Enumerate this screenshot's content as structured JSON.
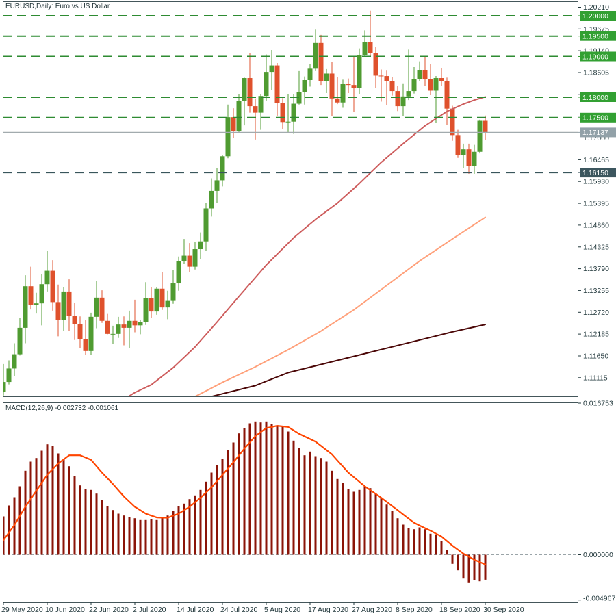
{
  "title": "EURUSD,Daily: Euro vs US Dollar",
  "window": {
    "symbol": "EURUSD",
    "period": "Daily",
    "description": "Euro vs US Dollar"
  },
  "indicator": {
    "label": "MACD(12,26,9) -0.002732 -0.001061",
    "name": "MACD(12,26,9)",
    "macd_value": "-0.002732",
    "signal_value": "-0.001061"
  },
  "colors": {
    "background": "#ffffff",
    "frame": "#44565a",
    "axis_text": "#22383c",
    "bull_candle": "#4f9b31",
    "bear_candle": "#df512c",
    "level_green": "#2e8b32",
    "level_dark": "#39565c",
    "badge_green": "#32a032",
    "badge_dark": "#3c565e",
    "bid_line": "#a2abae",
    "bid_badge": "#92a1a8",
    "ma_fast": "#cd5c5c",
    "ma_mid": "#ffa07a",
    "ma_slow": "#4b0707",
    "macd_histogram": "#8b1408",
    "macd_signal": "#ff4500",
    "zero_line": "#9aa4a8"
  },
  "chart_data": {
    "type": "candlestick+macd",
    "title": "EURUSD,Daily: Euro vs US Dollar",
    "bars": 89,
    "first_bar_date": "29 May 2020",
    "last_bar_date": "30 Sep 2020",
    "x_ticks": [
      {
        "bar": 0,
        "label": "29 May 2020"
      },
      {
        "bar": 8,
        "label": "10 Jun 2020"
      },
      {
        "bar": 16,
        "label": "22 Jun 2020"
      },
      {
        "bar": 24,
        "label": "2 Jul 2020"
      },
      {
        "bar": 32,
        "label": "14 Jul 2020"
      },
      {
        "bar": 40,
        "label": "24 Jul 2020"
      },
      {
        "bar": 48,
        "label": "5 Aug 2020"
      },
      {
        "bar": 56,
        "label": "17 Aug 2020"
      },
      {
        "bar": 64,
        "label": "27 Aug 2020"
      },
      {
        "bar": 72,
        "label": "8 Sep 2020"
      },
      {
        "bar": 80,
        "label": "18 Sep 2020"
      },
      {
        "bar": 88,
        "label": "30 Sep 2020"
      }
    ],
    "price_axis": {
      "ticks": [
        "1.20210",
        "1.19675",
        "1.19140",
        "1.18605",
        "1.18070",
        "1.17535",
        "1.17000",
        "1.16465",
        "1.15930",
        "1.15395",
        "1.14860",
        "1.14325",
        "1.13790",
        "1.13255",
        "1.12720",
        "1.12185",
        "1.11650",
        "1.11115"
      ],
      "tick_step": 0.00535,
      "visible_range": [
        1.1064,
        1.2035
      ]
    },
    "levels": [
      {
        "label": "1.20000",
        "value": 1.2,
        "style": "green-dashed"
      },
      {
        "label": "1.19500",
        "value": 1.195,
        "style": "green-dashed"
      },
      {
        "label": "1.19000",
        "value": 1.19,
        "style": "green-dashed"
      },
      {
        "label": "1.18000",
        "value": 1.18,
        "style": "green-dashed"
      },
      {
        "label": "1.17500",
        "value": 1.175,
        "style": "green-dashed"
      },
      {
        "label": "1.16150",
        "value": 1.1615,
        "style": "dark-dashed"
      }
    ],
    "bid": {
      "label": "1.17137",
      "value": 1.17137
    },
    "ohlc": [
      [
        1.1076,
        1.1145,
        1.1068,
        1.1101
      ],
      [
        1.1101,
        1.1154,
        1.1095,
        1.1134
      ],
      [
        1.1134,
        1.1196,
        1.1116,
        1.1169
      ],
      [
        1.1169,
        1.1258,
        1.1166,
        1.1234
      ],
      [
        1.1234,
        1.1363,
        1.1196,
        1.1336
      ],
      [
        1.1336,
        1.1384,
        1.1279,
        1.1291
      ],
      [
        1.1291,
        1.132,
        1.1269,
        1.1294
      ],
      [
        1.1294,
        1.1366,
        1.124,
        1.1341
      ],
      [
        1.1341,
        1.1422,
        1.1323,
        1.1374
      ],
      [
        1.1374,
        1.14,
        1.1276,
        1.1297
      ],
      [
        1.1297,
        1.134,
        1.1213,
        1.1254
      ],
      [
        1.1254,
        1.1333,
        1.1227,
        1.1323
      ],
      [
        1.1323,
        1.1353,
        1.1226,
        1.1263
      ],
      [
        1.1263,
        1.1296,
        1.1204,
        1.1243
      ],
      [
        1.1243,
        1.1262,
        1.1185,
        1.1206
      ],
      [
        1.1206,
        1.1253,
        1.1168,
        1.1177
      ],
      [
        1.1177,
        1.1271,
        1.1168,
        1.1261
      ],
      [
        1.1261,
        1.1349,
        1.1233,
        1.1308
      ],
      [
        1.1308,
        1.1326,
        1.1246,
        1.1251
      ],
      [
        1.1251,
        1.1268,
        1.1218,
        1.1219
      ],
      [
        1.1219,
        1.1239,
        1.1194,
        1.1219
      ],
      [
        1.1219,
        1.1261,
        1.1209,
        1.1242
      ],
      [
        1.1242,
        1.1262,
        1.1191,
        1.1234
      ],
      [
        1.1234,
        1.1276,
        1.1185,
        1.1251
      ],
      [
        1.1251,
        1.1303,
        1.1223,
        1.124
      ],
      [
        1.124,
        1.1254,
        1.1218,
        1.1248
      ],
      [
        1.1248,
        1.1346,
        1.1241,
        1.1307
      ],
      [
        1.1307,
        1.1333,
        1.1259,
        1.1274
      ],
      [
        1.1274,
        1.1333,
        1.1266,
        1.133
      ],
      [
        1.133,
        1.1371,
        1.1278,
        1.1284
      ],
      [
        1.1284,
        1.1325,
        1.1255,
        1.13
      ],
      [
        1.13,
        1.1375,
        1.1293,
        1.1343
      ],
      [
        1.1343,
        1.1409,
        1.1325,
        1.1397
      ],
      [
        1.1397,
        1.1452,
        1.139,
        1.1411
      ],
      [
        1.1411,
        1.1442,
        1.137,
        1.1384
      ],
      [
        1.1384,
        1.1444,
        1.1377,
        1.1427
      ],
      [
        1.1427,
        1.1468,
        1.1402,
        1.1446
      ],
      [
        1.1446,
        1.154,
        1.1422,
        1.1527
      ],
      [
        1.1527,
        1.1601,
        1.1507,
        1.157
      ],
      [
        1.157,
        1.1627,
        1.154,
        1.1596
      ],
      [
        1.1596,
        1.1658,
        1.1581,
        1.1655
      ],
      [
        1.1655,
        1.1782,
        1.165,
        1.1751
      ],
      [
        1.1751,
        1.1773,
        1.17,
        1.1716
      ],
      [
        1.1716,
        1.1807,
        1.1712,
        1.179
      ],
      [
        1.179,
        1.1848,
        1.1731,
        1.1847
      ],
      [
        1.1847,
        1.1909,
        1.1762,
        1.1778
      ],
      [
        1.1778,
        1.1797,
        1.1696,
        1.1762
      ],
      [
        1.1762,
        1.1807,
        1.172,
        1.1803
      ],
      [
        1.1803,
        1.1905,
        1.179,
        1.1862
      ],
      [
        1.1862,
        1.1916,
        1.1817,
        1.1878
      ],
      [
        1.1878,
        1.1884,
        1.1754,
        1.1786
      ],
      [
        1.1786,
        1.1798,
        1.1722,
        1.1739
      ],
      [
        1.1739,
        1.1808,
        1.1711,
        1.174
      ],
      [
        1.174,
        1.1808,
        1.171,
        1.1784
      ],
      [
        1.1784,
        1.1864,
        1.1782,
        1.1813
      ],
      [
        1.1813,
        1.1851,
        1.1782,
        1.1842
      ],
      [
        1.1842,
        1.1882,
        1.1826,
        1.187
      ],
      [
        1.187,
        1.1966,
        1.1864,
        1.1933
      ],
      [
        1.1933,
        1.1953,
        1.183,
        1.184
      ],
      [
        1.184,
        1.1869,
        1.181,
        1.1858
      ],
      [
        1.1858,
        1.1886,
        1.1754,
        1.1797
      ],
      [
        1.1797,
        1.1849,
        1.1783,
        1.1787
      ],
      [
        1.1787,
        1.1843,
        1.1774,
        1.1833
      ],
      [
        1.1833,
        1.1846,
        1.181,
        1.183
      ],
      [
        1.183,
        1.19,
        1.1763,
        1.1823
      ],
      [
        1.1823,
        1.192,
        1.1807,
        1.1903
      ],
      [
        1.1903,
        1.1964,
        1.1898,
        1.1935
      ],
      [
        1.1935,
        1.2012,
        1.1899,
        1.1908
      ],
      [
        1.1908,
        1.1924,
        1.1823,
        1.1853
      ],
      [
        1.1853,
        1.1868,
        1.1789,
        1.1852
      ],
      [
        1.1852,
        1.1865,
        1.1781,
        1.184
      ],
      [
        1.184,
        1.1849,
        1.1804,
        1.1815
      ],
      [
        1.1815,
        1.1827,
        1.1766,
        1.1778
      ],
      [
        1.1778,
        1.1834,
        1.1753,
        1.1802
      ],
      [
        1.1802,
        1.1917,
        1.1793,
        1.1815
      ],
      [
        1.1815,
        1.1874,
        1.1809,
        1.1845
      ],
      [
        1.1845,
        1.1888,
        1.1839,
        1.1866
      ],
      [
        1.1866,
        1.1901,
        1.1827,
        1.1845
      ],
      [
        1.1845,
        1.1882,
        1.1805,
        1.1816
      ],
      [
        1.1816,
        1.1852,
        1.1737,
        1.1847
      ],
      [
        1.1847,
        1.1871,
        1.1827,
        1.184
      ],
      [
        1.184,
        1.1848,
        1.1732,
        1.1772
      ],
      [
        1.1772,
        1.1779,
        1.1693,
        1.1707
      ],
      [
        1.1707,
        1.172,
        1.1651,
        1.1658
      ],
      [
        1.1658,
        1.1686,
        1.1626,
        1.1672
      ],
      [
        1.1672,
        1.1686,
        1.1612,
        1.1631
      ],
      [
        1.1631,
        1.1683,
        1.1612,
        1.1666
      ],
      [
        1.1666,
        1.1745,
        1.1662,
        1.1742
      ],
      [
        1.1742,
        1.1755,
        1.1695,
        1.17137
      ]
    ],
    "ma_lines": [
      {
        "name": "ma-fast",
        "color_key": "ma_fast",
        "points": [
          [
            21,
            1.105
          ],
          [
            24,
            1.1075
          ],
          [
            27,
            1.1094
          ],
          [
            31,
            1.1136
          ],
          [
            35,
            1.1187
          ],
          [
            39,
            1.1248
          ],
          [
            43,
            1.1311
          ],
          [
            48,
            1.1388
          ],
          [
            53,
            1.1455
          ],
          [
            57,
            1.15
          ],
          [
            61,
            1.154
          ],
          [
            65,
            1.1588
          ],
          [
            69,
            1.164
          ],
          [
            73,
            1.1686
          ],
          [
            77,
            1.173
          ],
          [
            81,
            1.1765
          ],
          [
            84,
            1.1783
          ],
          [
            86,
            1.1793
          ],
          [
            88,
            1.1801
          ]
        ]
      },
      {
        "name": "ma-mid",
        "color_key": "ma_mid",
        "points": [
          [
            33,
            1.1052
          ],
          [
            36,
            1.1072
          ],
          [
            40,
            1.11
          ],
          [
            46,
            1.1138
          ],
          [
            52,
            1.118
          ],
          [
            58,
            1.1226
          ],
          [
            64,
            1.1278
          ],
          [
            70,
            1.1338
          ],
          [
            76,
            1.1398
          ],
          [
            82,
            1.1452
          ],
          [
            88,
            1.1505
          ]
        ]
      },
      {
        "name": "ma-slow",
        "color_key": "ma_slow",
        "points": [
          [
            34,
            1.1052
          ],
          [
            40,
            1.1072
          ],
          [
            46,
            1.1092
          ],
          [
            52,
            1.1124
          ],
          [
            58,
            1.1144
          ],
          [
            64,
            1.1164
          ],
          [
            70,
            1.1184
          ],
          [
            76,
            1.1204
          ],
          [
            82,
            1.1224
          ],
          [
            88,
            1.1242
          ]
        ]
      }
    ],
    "macd": {
      "axis_ticks": [
        "0.016753",
        "0.000000",
        "-0.004967"
      ],
      "axis_range": [
        -0.004967,
        0.016753
      ],
      "histogram": [
        0.0042,
        0.0054,
        0.0063,
        0.0075,
        0.0092,
        0.0102,
        0.0106,
        0.0114,
        0.0121,
        0.0119,
        0.0111,
        0.0105,
        0.0097,
        0.0086,
        0.0076,
        0.0072,
        0.0071,
        0.0067,
        0.006,
        0.0053,
        0.0049,
        0.0045,
        0.0043,
        0.0041,
        0.004,
        0.0038,
        0.0038,
        0.0039,
        0.0038,
        0.004,
        0.0043,
        0.0048,
        0.0053,
        0.0056,
        0.0061,
        0.0065,
        0.0071,
        0.008,
        0.009,
        0.0098,
        0.0105,
        0.0115,
        0.0123,
        0.0133,
        0.0139,
        0.0144,
        0.0146,
        0.0145,
        0.0146,
        0.0143,
        0.0141,
        0.014,
        0.0135,
        0.0125,
        0.0117,
        0.0109,
        0.0113,
        0.0108,
        0.0106,
        0.0102,
        0.0092,
        0.0083,
        0.0079,
        0.0072,
        0.0069,
        0.0071,
        0.0074,
        0.0073,
        0.0067,
        0.0062,
        0.0055,
        0.0048,
        0.004,
        0.0033,
        0.0029,
        0.0028,
        0.003,
        0.0028,
        0.0023,
        0.0022,
        0.0015,
        0.0005,
        -0.001,
        -0.0017,
        -0.0026,
        -0.0031,
        -0.0028,
        -0.0029,
        -0.002732
      ],
      "signal": [
        0.0016,
        0.00243,
        0.00325,
        0.00425,
        0.00525,
        0.00613,
        0.007,
        0.00788,
        0.00875,
        0.00938,
        0.01,
        0.01045,
        0.0109,
        0.0109,
        0.0109,
        0.01065,
        0.0104,
        0.0097,
        0.009,
        0.00838,
        0.00775,
        0.00706,
        0.00638,
        0.00581,
        0.00525,
        0.00488,
        0.0045,
        0.00429,
        0.00408,
        0.00406,
        0.00405,
        0.00428,
        0.0045,
        0.00488,
        0.00525,
        0.00575,
        0.00625,
        0.00681,
        0.00738,
        0.00806,
        0.00875,
        0.00944,
        0.01013,
        0.01088,
        0.01163,
        0.01231,
        0.013,
        0.01344,
        0.01388,
        0.014,
        0.01413,
        0.01406,
        0.014,
        0.01363,
        0.01325,
        0.01297,
        0.01268,
        0.0124,
        0.01193,
        0.01147,
        0.011,
        0.01033,
        0.00967,
        0.009,
        0.0085,
        0.008,
        0.0075,
        0.00708,
        0.00667,
        0.00625,
        0.00579,
        0.00533,
        0.00488,
        0.00442,
        0.00396,
        0.0035,
        0.00321,
        0.00292,
        0.00263,
        0.00231,
        0.002,
        0.0015,
        0.001,
        0.00056,
        0.00013,
        -0.00021,
        -0.00055,
        -0.00081,
        -0.00106
      ]
    }
  }
}
